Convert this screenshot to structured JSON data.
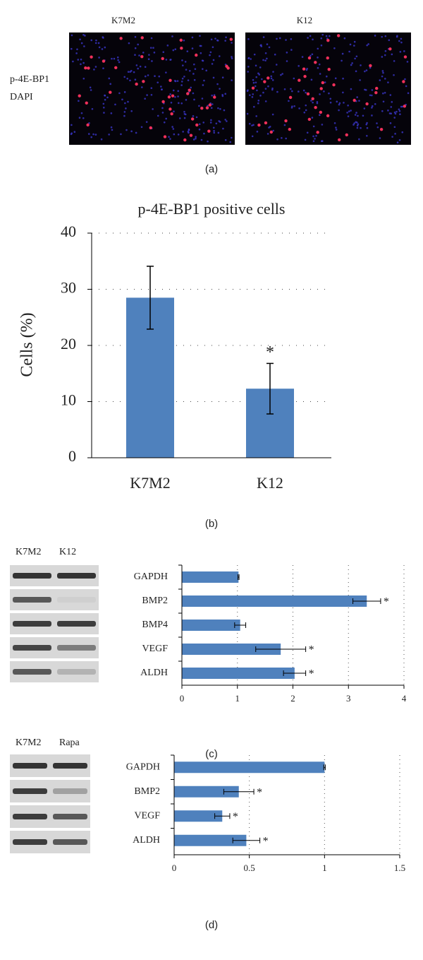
{
  "panel_a": {
    "labels": [
      "K7M2",
      "K12"
    ],
    "legend": [
      {
        "name": "p-4E-BP1",
        "color": "#e02020"
      },
      {
        "name": "DAPI",
        "color": "#2020d0"
      }
    ],
    "caption": "(a)"
  },
  "chart_data": [
    {
      "type": "bar",
      "title": "p-4E-BP1 positive cells",
      "ylabel": "Cells (%)",
      "categories": [
        "K7M2",
        "K12"
      ],
      "values": [
        28.5,
        12.3
      ],
      "errors": [
        5.6,
        4.5
      ],
      "significance": [
        null,
        "*"
      ],
      "color": "#4f81bd",
      "ylim": [
        0,
        40
      ],
      "yticks": [
        0,
        10,
        20,
        30,
        40
      ],
      "grid": true,
      "caption": "(b)"
    },
    {
      "type": "hbar",
      "categories": [
        "GAPDH",
        "BMP2",
        "BMP4",
        "VEGF",
        "ALDH"
      ],
      "values": [
        1.02,
        3.33,
        1.05,
        1.78,
        2.03
      ],
      "errors": [
        0.01,
        0.25,
        0.1,
        0.45,
        0.2
      ],
      "significance": [
        null,
        "*",
        null,
        "*",
        "*"
      ],
      "color": "#4f81bd",
      "xlim": [
        0,
        4
      ],
      "xticks": [
        0,
        1,
        2,
        3,
        4
      ],
      "grid": true,
      "gel_labels": [
        "K7M2",
        "K12"
      ],
      "caption": "(c)"
    },
    {
      "type": "hbar",
      "categories": [
        "GAPDH",
        "BMP2",
        "VEGF",
        "ALDH"
      ],
      "values": [
        1.0,
        0.43,
        0.32,
        0.48
      ],
      "errors": [
        0.005,
        0.1,
        0.05,
        0.09
      ],
      "significance": [
        null,
        "*",
        "*",
        "*"
      ],
      "color": "#4f81bd",
      "xlim": [
        0,
        1.5
      ],
      "xticks": [
        0,
        0.5,
        1,
        1.5
      ],
      "grid": true,
      "gel_labels": [
        "K7M2",
        "Rapa"
      ],
      "caption": "(d)"
    }
  ]
}
